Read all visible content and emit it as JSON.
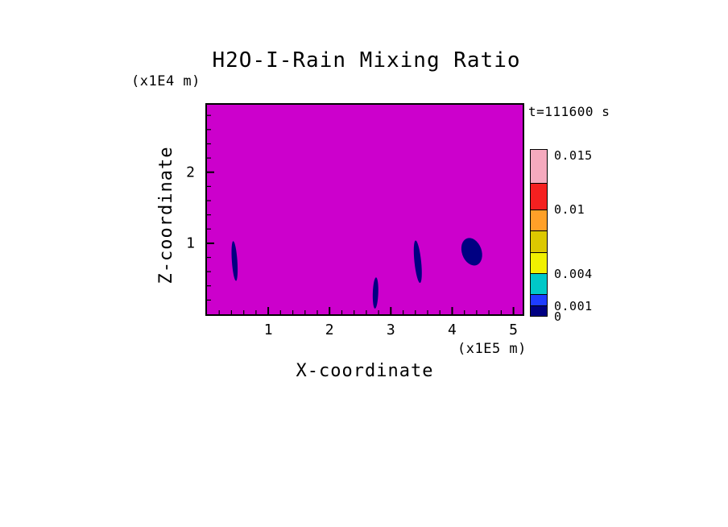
{
  "title": "H2O-I-Rain Mixing Ratio",
  "annotation": "t=111600 s",
  "axes": {
    "x_label": "X-coordinate",
    "x_units": "(x1E5 m)",
    "z_label": "Z-coordinate",
    "z_units": "(x1E4 m)"
  },
  "chart_data": {
    "type": "heatmap",
    "title": "H2O-I-Rain Mixing Ratio",
    "xlabel": "X-coordinate (x1E5 m)",
    "ylabel": "Z-coordinate (x1E4 m)",
    "time_annotation": "t=111600 s",
    "x_range": [
      0,
      5.15
    ],
    "z_range": [
      0,
      2.95
    ],
    "x_ticks": [
      1,
      2,
      3,
      4,
      5
    ],
    "z_ticks": [
      1,
      2
    ],
    "x_minor_step": 0.2,
    "z_minor_step": 0.2,
    "grid": false,
    "background_value": 0,
    "background_color": "#CC00CC",
    "feature_description": "small dark-blue rain mixing ratio cells embedded in magenta zero-value field",
    "features": [
      {
        "x": 0.45,
        "z": 0.75,
        "rx": 0.045,
        "rz": 0.28,
        "tilt": -4,
        "color": "#000082"
      },
      {
        "x": 2.75,
        "z": 0.3,
        "rx": 0.045,
        "rz": 0.22,
        "tilt": 2,
        "color": "#000082"
      },
      {
        "x": 3.44,
        "z": 0.74,
        "rx": 0.055,
        "rz": 0.3,
        "tilt": -6,
        "color": "#000082"
      },
      {
        "x": 4.32,
        "z": 0.88,
        "rx": 0.16,
        "rz": 0.2,
        "tilt": -20,
        "color": "#000082"
      }
    ],
    "colorbar": {
      "min": 0,
      "max": 0.0156,
      "position": "right",
      "segments": [
        {
          "from": 0,
          "to": 0.001,
          "color": "#000082"
        },
        {
          "from": 0.001,
          "to": 0.002,
          "color": "#1E3CFF"
        },
        {
          "from": 0.002,
          "to": 0.004,
          "color": "#00C8C8"
        },
        {
          "from": 0.004,
          "to": 0.006,
          "color": "#F0F000"
        },
        {
          "from": 0.006,
          "to": 0.008,
          "color": "#DCC800"
        },
        {
          "from": 0.008,
          "to": 0.01,
          "color": "#FFA028"
        },
        {
          "from": 0.01,
          "to": 0.0125,
          "color": "#F52020"
        },
        {
          "from": 0.0125,
          "to": 0.0156,
          "color": "#F5AABE"
        }
      ],
      "tick_labels": [
        {
          "value": 0.015,
          "label": "0.015"
        },
        {
          "value": 0.01,
          "label": "0.01"
        },
        {
          "value": 0.004,
          "label": "0.004"
        },
        {
          "value": 0.001,
          "label": "0.001"
        },
        {
          "value": 0,
          "label": "0"
        }
      ]
    }
  }
}
